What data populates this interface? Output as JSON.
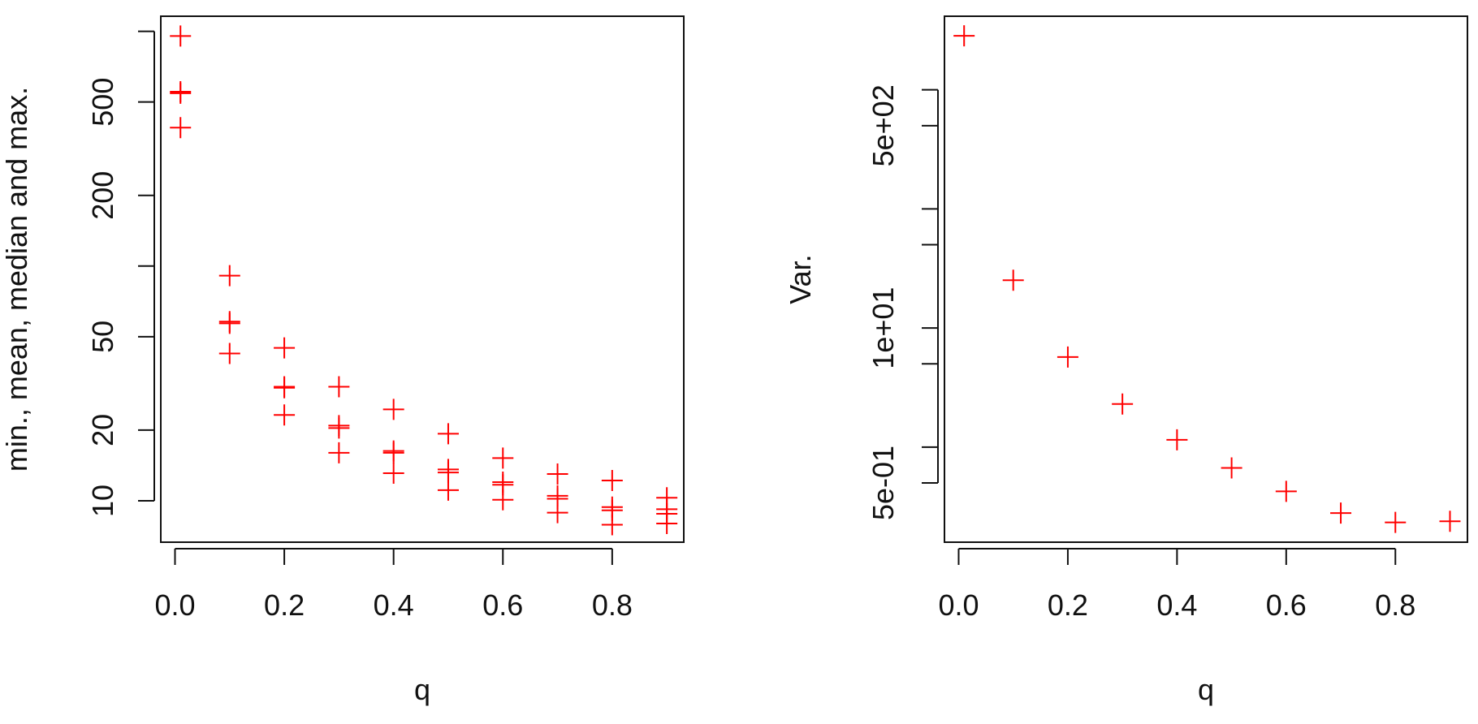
{
  "chart_data": [
    {
      "type": "scatter",
      "xlabel": "q",
      "ylabel": "min., mean, median and max.",
      "color": "#ff0000",
      "ylog": true,
      "x": [
        0.01,
        0.01,
        0.01,
        0.01,
        0.1,
        0.1,
        0.1,
        0.1,
        0.2,
        0.2,
        0.2,
        0.2,
        0.3,
        0.3,
        0.3,
        0.3,
        0.4,
        0.4,
        0.4,
        0.4,
        0.5,
        0.5,
        0.5,
        0.5,
        0.6,
        0.6,
        0.6,
        0.6,
        0.7,
        0.7,
        0.7,
        0.7,
        0.8,
        0.8,
        0.8,
        0.8,
        0.9,
        0.9,
        0.9,
        0.9
      ],
      "values": [
        955,
        553,
        545,
        389,
        91,
        58,
        57,
        42.4,
        44.8,
        30.6,
        30.3,
        23.2,
        30.6,
        20.9,
        20.4,
        16.0,
        24.5,
        16.3,
        16.0,
        13.1,
        19.3,
        13.6,
        13.2,
        11.1,
        15.2,
        12.0,
        11.7,
        10.1,
        13.0,
        10.5,
        10.2,
        8.9,
        12.2,
        9.4,
        9.1,
        7.9,
        10.3,
        9.2,
        8.8,
        8.0
      ],
      "xlim": [
        -0.026,
        0.931
      ],
      "xticks": [
        {
          "value": 0,
          "label": "0.0"
        },
        0.2,
        0.4,
        0.6,
        0.8
      ],
      "ylim": [
        6.66,
        1160
      ],
      "yticks": [
        10,
        20,
        50,
        {
          "value": 100,
          "label": null
        },
        200,
        500,
        {
          "value": 1000,
          "label": null
        }
      ]
    },
    {
      "type": "scatter",
      "xlabel": "q",
      "ylabel": "Var.",
      "color": "#ff0000",
      "ylog": true,
      "x": [
        0.01,
        0.1,
        0.2,
        0.3,
        0.4,
        0.5,
        0.6,
        0.7,
        0.8,
        0.9
      ],
      "values": [
        2840,
        25.2,
        5.7,
        2.3,
        1.15,
        0.668,
        0.425,
        0.279,
        0.233,
        0.238
      ],
      "xlim": [
        -0.026,
        0.932
      ],
      "xticks": [
        {
          "value": 0,
          "label": "0.0"
        },
        0.2,
        0.4,
        0.6,
        0.8
      ],
      "ylim": [
        0.159,
        4150
      ],
      "yticks": [
        {
          "value": 0.5,
          "label": "5e-01"
        },
        {
          "value": 1,
          "label": null
        },
        {
          "value": 5,
          "label": null
        },
        {
          "value": 10,
          "label": "1e+01"
        },
        {
          "value": 50,
          "label": null
        },
        {
          "value": 100,
          "label": null
        },
        {
          "value": 500,
          "label": "5e+02"
        },
        {
          "value": 1000,
          "label": null
        }
      ]
    }
  ]
}
